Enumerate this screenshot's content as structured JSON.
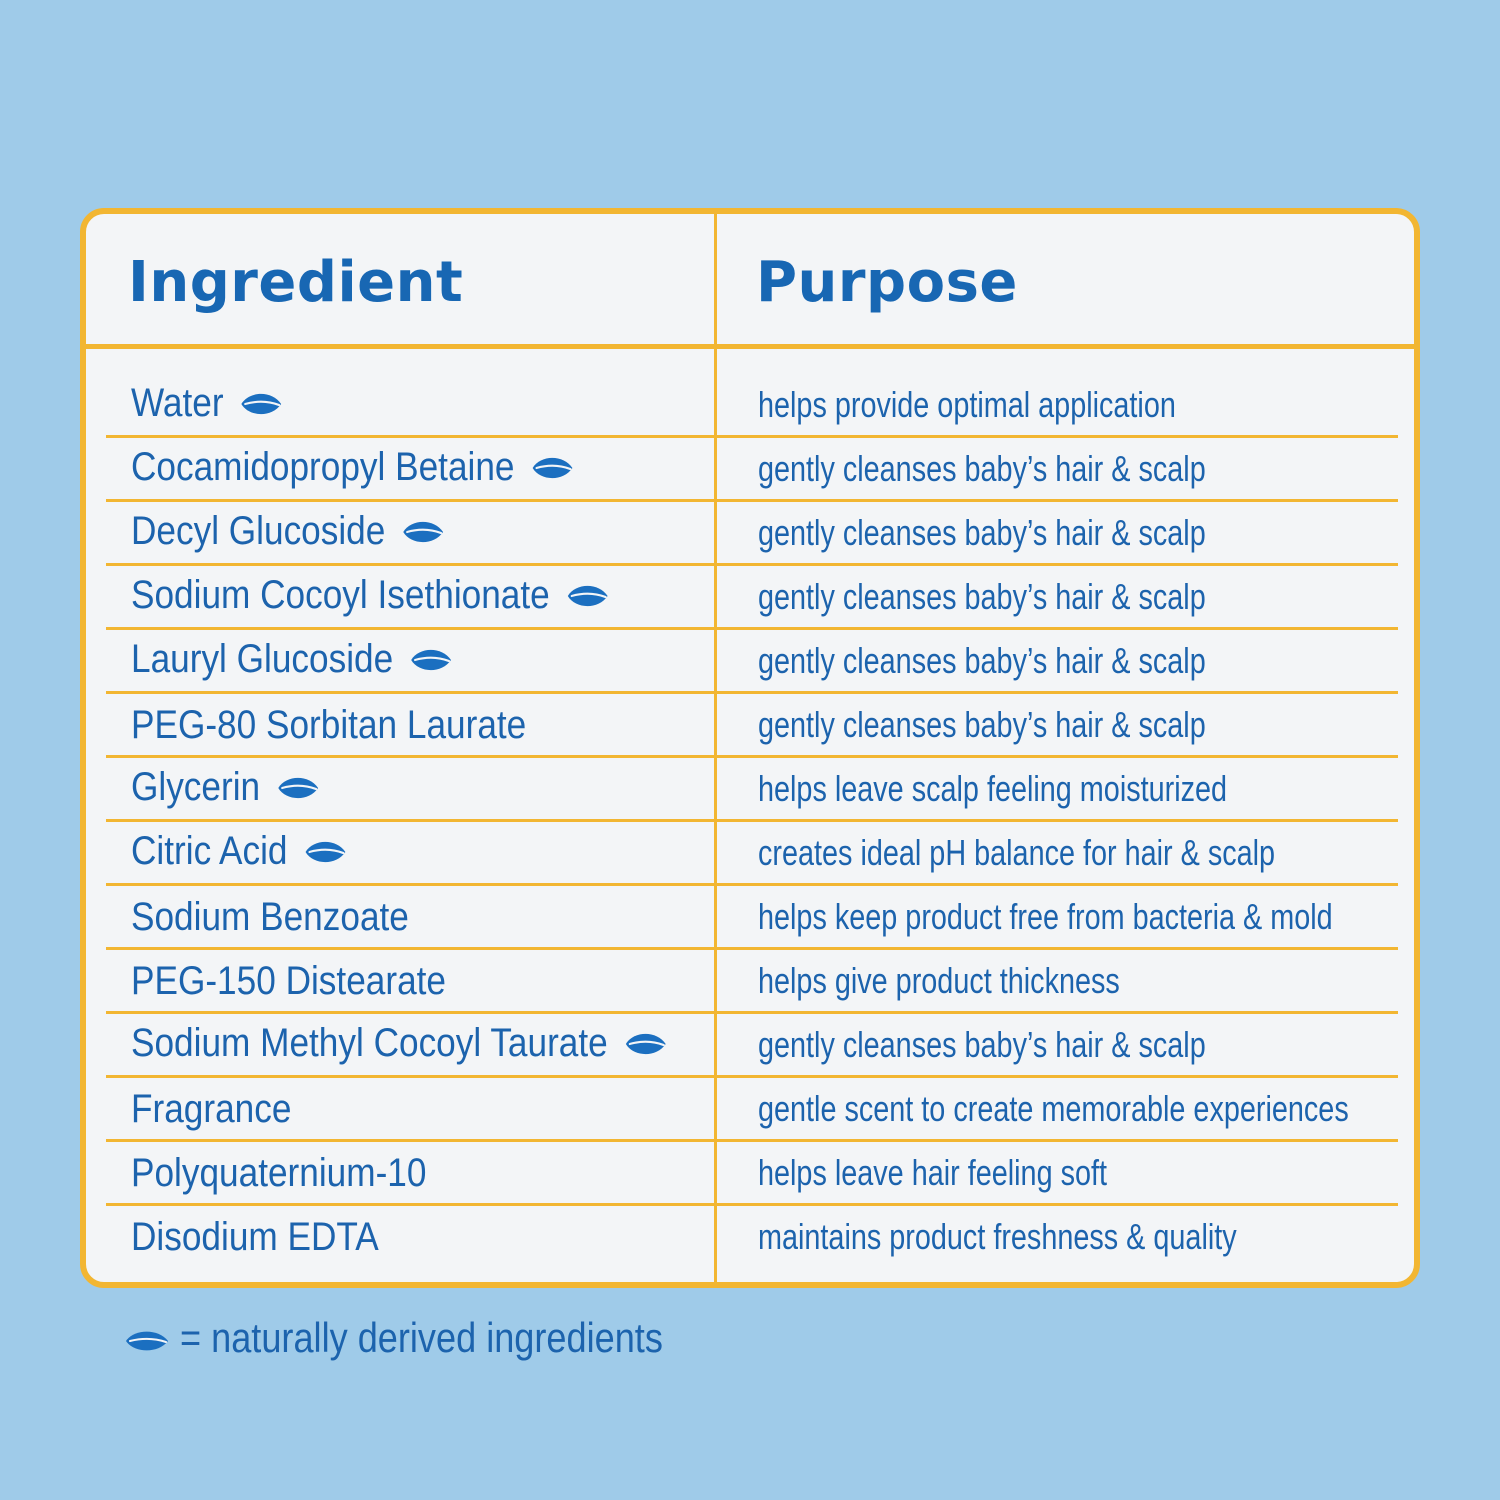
{
  "table": {
    "header_ingredient": "Ingredient",
    "header_purpose": "Purpose",
    "rows": [
      {
        "ingredient": "Water",
        "purpose": "helps provide optimal application",
        "natural": true
      },
      {
        "ingredient": "Cocamidopropyl Betaine",
        "purpose": "gently cleanses baby’s hair & scalp",
        "natural": true
      },
      {
        "ingredient": "Decyl Glucoside",
        "purpose": "gently cleanses baby’s hair & scalp",
        "natural": true
      },
      {
        "ingredient": "Sodium Cocoyl Isethionate",
        "purpose": "gently cleanses baby’s hair & scalp",
        "natural": true
      },
      {
        "ingredient": "Lauryl Glucoside",
        "purpose": "gently cleanses baby’s hair & scalp",
        "natural": true
      },
      {
        "ingredient": "PEG-80 Sorbitan Laurate",
        "purpose": "gently cleanses baby’s hair & scalp",
        "natural": false
      },
      {
        "ingredient": "Glycerin",
        "purpose": "helps leave scalp feeling moisturized",
        "natural": true
      },
      {
        "ingredient": "Citric Acid",
        "purpose": "creates ideal pH balance for hair & scalp",
        "natural": true
      },
      {
        "ingredient": "Sodium Benzoate",
        "purpose": "helps keep product free from bacteria & mold",
        "natural": false
      },
      {
        "ingredient": "PEG-150 Distearate",
        "purpose": "helps give product thickness",
        "natural": false
      },
      {
        "ingredient": "Sodium Methyl Cocoyl Taurate",
        "purpose": "gently cleanses baby’s hair & scalp",
        "natural": true
      },
      {
        "ingredient": "Fragrance",
        "purpose": "gentle scent to create memorable experiences",
        "natural": false
      },
      {
        "ingredient": "Polyquaternium-10",
        "purpose": "helps leave hair feeling soft",
        "natural": false
      },
      {
        "ingredient": "Disodium EDTA",
        "purpose": "maintains product freshness & quality",
        "natural": false
      }
    ]
  },
  "legend": {
    "text": "= naturally derived ingredients",
    "icon": "leaf-icon"
  },
  "colors": {
    "background": "#9fcbe9",
    "card": "#f3f5f7",
    "border": "#f2b632",
    "text": "#1c63ad",
    "leaf": "#1b6fc0"
  }
}
